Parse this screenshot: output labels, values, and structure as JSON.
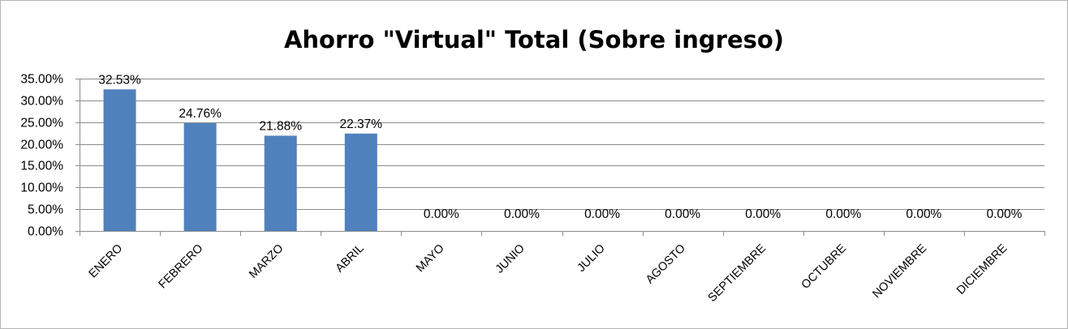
{
  "chart_data": {
    "type": "bar",
    "title": "Ahorro \"Virtual\" Total (Sobre ingreso)",
    "categories": [
      "ENERO",
      "FEBRERO",
      "MARZO",
      "ABRIL",
      "MAYO",
      "JUNIO",
      "JULIO",
      "AGOSTO",
      "SEPTIEMBRE",
      "OCTUBRE",
      "NOVIEMBRE",
      "DICIEMBRE"
    ],
    "values": [
      32.53,
      24.76,
      21.88,
      22.37,
      0,
      0,
      0,
      0,
      0,
      0,
      0,
      0
    ],
    "data_labels": [
      "32.53%",
      "24.76%",
      "21.88%",
      "22.37%",
      "0.00%",
      "0.00%",
      "0.00%",
      "0.00%",
      "0.00%",
      "0.00%",
      "0.00%",
      "0.00%"
    ],
    "y_ticks": [
      "0.00%",
      "5.00%",
      "10.00%",
      "15.00%",
      "20.00%",
      "25.00%",
      "30.00%",
      "35.00%"
    ],
    "ylim": [
      0,
      35
    ],
    "ytick_step": 5,
    "grid": true,
    "legend": "none",
    "bar_color": "#4f81bd",
    "grid_color": "#8c8c8c"
  }
}
